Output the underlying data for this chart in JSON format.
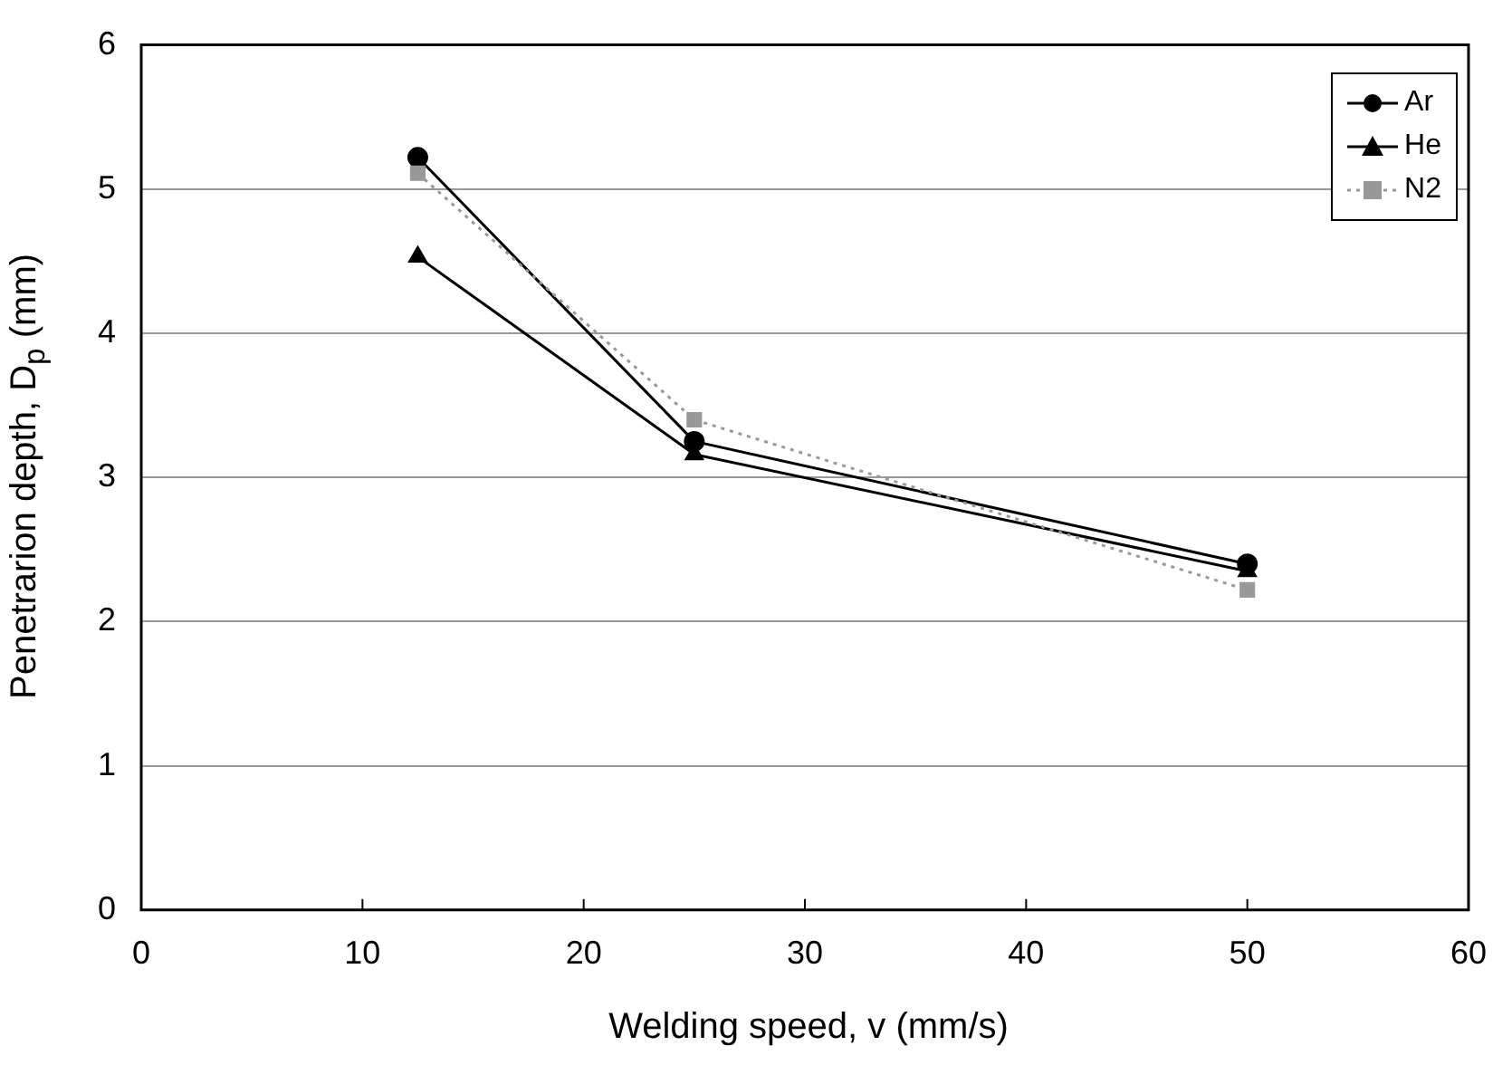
{
  "chart_data": {
    "type": "line",
    "xlabel": "Welding speed, v (mm/s)",
    "ylabel": "Penetrarion depth, D$_{p}$ (mm)",
    "x": [
      12.5,
      25,
      50
    ],
    "series": [
      {
        "name": "Ar",
        "color": "#000000",
        "values": [
          5.22,
          3.25,
          2.4
        ],
        "marker": "circle",
        "line_style": "solid"
      },
      {
        "name": "He",
        "color": "#000000",
        "values": [
          4.53,
          3.16,
          2.35
        ],
        "marker": "triangle",
        "line_style": "solid"
      },
      {
        "name": "N2",
        "color": "#999999",
        "values": [
          5.11,
          3.4,
          2.22
        ],
        "marker": "square",
        "line_style": "dotted"
      }
    ],
    "xlim": [
      0,
      60
    ],
    "xticks": [
      0,
      10,
      20,
      30,
      40,
      50,
      60
    ],
    "ylim": [
      0,
      6
    ],
    "yticks": [
      0,
      1,
      2,
      3,
      4,
      5,
      6
    ],
    "grid": "y",
    "legend": "top right"
  }
}
